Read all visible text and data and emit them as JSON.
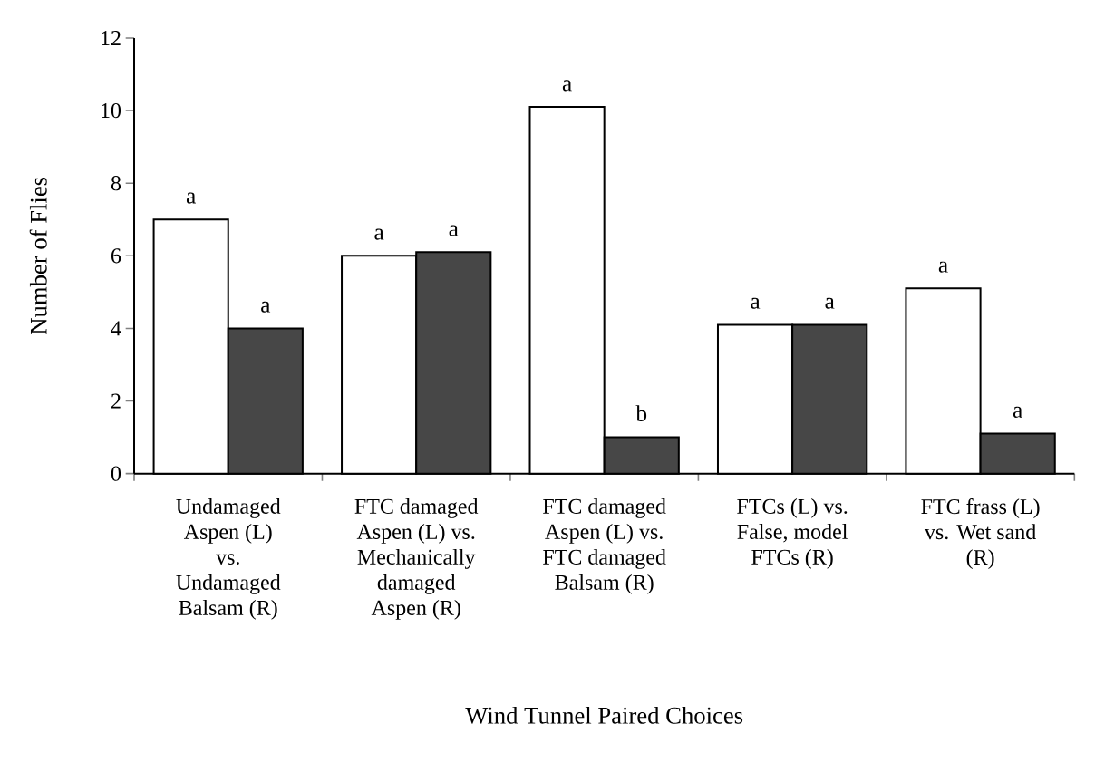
{
  "chart_data": {
    "type": "bar",
    "xlabel": "Wind Tunnel Paired Choices",
    "ylabel": "Number of Flies",
    "categories": [
      "Undamaged Aspen (L) vs. Undamaged Balsam (R)",
      "FTC damaged Aspen (L) vs. Mechanically damaged Aspen (R)",
      "FTC damaged Aspen (L) vs. FTC damaged Balsam (R)",
      "FTCs (L) vs. False, model FTCs (R)",
      "FTC frass (L) vs. Wet sand (R)"
    ],
    "series": [
      {
        "color": "#ffffff",
        "values": [
          7,
          6,
          10.1,
          4.1,
          5.1
        ],
        "value_labels": [
          "a",
          "a",
          "a",
          "a",
          "a"
        ]
      },
      {
        "color": "#474747",
        "values": [
          4,
          6.1,
          1,
          4.1,
          1.1
        ],
        "value_labels": [
          "a",
          "a",
          "b",
          "a",
          "a"
        ]
      }
    ],
    "ylim": [
      0,
      12
    ],
    "yticks": [
      0,
      2,
      4,
      6,
      8,
      10,
      12
    ]
  }
}
